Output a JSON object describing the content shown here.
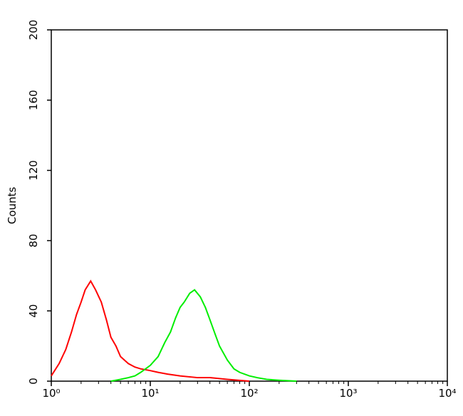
{
  "chart_data": {
    "type": "line",
    "xscale": "log",
    "ylabel": "Counts",
    "xlim": [
      1,
      10000
    ],
    "xticks": [
      {
        "value": 1,
        "label": "10⁰"
      },
      {
        "value": 10,
        "label": "10¹"
      },
      {
        "value": 100,
        "label": "10²"
      },
      {
        "value": 1000,
        "label": "10³"
      },
      {
        "value": 10000,
        "label": "10⁴"
      }
    ],
    "ylim": [
      0,
      200
    ],
    "yticks": [
      0,
      40,
      80,
      120,
      160,
      200
    ],
    "series": [
      {
        "color": "#ff0000",
        "x": [
          1,
          1.2,
          1.4,
          1.6,
          1.8,
          2,
          2.2,
          2.5,
          2.8,
          3.2,
          3.6,
          4,
          4.5,
          5,
          6,
          7,
          8,
          10,
          12,
          15,
          20,
          30,
          40,
          60,
          100
        ],
        "values": [
          3,
          10,
          18,
          28,
          38,
          45,
          52,
          57,
          52,
          45,
          35,
          25,
          20,
          14,
          10,
          8,
          7,
          6,
          5,
          4,
          3,
          2,
          2,
          1,
          0
        ]
      },
      {
        "color": "#00ee00",
        "x": [
          4,
          5,
          6,
          7,
          8,
          10,
          12,
          14,
          16,
          18,
          20,
          22,
          25,
          28,
          32,
          36,
          40,
          45,
          50,
          60,
          70,
          80,
          100,
          120,
          150,
          200,
          300
        ],
        "values": [
          0,
          1,
          2,
          3,
          5,
          9,
          14,
          22,
          28,
          36,
          42,
          45,
          50,
          52,
          48,
          42,
          35,
          27,
          20,
          12,
          7,
          5,
          3,
          2,
          1,
          0.5,
          0
        ]
      }
    ]
  }
}
